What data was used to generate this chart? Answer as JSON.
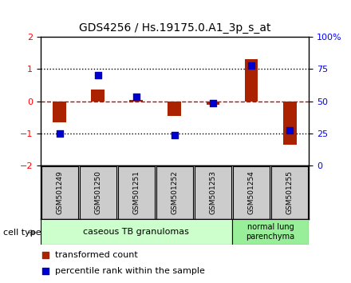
{
  "title": "GDS4256 / Hs.19175.0.A1_3p_s_at",
  "samples": [
    "GSM501249",
    "GSM501250",
    "GSM501251",
    "GSM501252",
    "GSM501253",
    "GSM501254",
    "GSM501255"
  ],
  "red_bars": [
    -0.65,
    0.35,
    0.05,
    -0.45,
    -0.1,
    1.3,
    -1.35
  ],
  "blue_dots": [
    -1.0,
    0.8,
    0.15,
    -1.05,
    -0.06,
    1.1,
    -0.9
  ],
  "ylim": [
    -2,
    2
  ],
  "yticks_left": [
    -2,
    -1,
    0,
    1,
    2
  ],
  "right_tick_vals": [
    -2,
    -1,
    0,
    1,
    2
  ],
  "right_tick_labels": [
    "0",
    "25",
    "50",
    "75",
    "100%"
  ],
  "bar_color": "#aa2200",
  "dot_color": "#0000cc",
  "zero_line_color": "#cc0000",
  "dotted_line_color": "#000000",
  "group1_label": "caseous TB granulomas",
  "group1_color": "#ccffcc",
  "group2_label": "normal lung\nparenchyma",
  "group2_color": "#99ee99",
  "group1_count": 5,
  "group2_count": 2,
  "cell_type_label": "cell type",
  "legend_red": "transformed count",
  "legend_blue": "percentile rank within the sample",
  "bg_color": "#ffffff",
  "sample_bg_color": "#cccccc",
  "bar_width": 0.35
}
